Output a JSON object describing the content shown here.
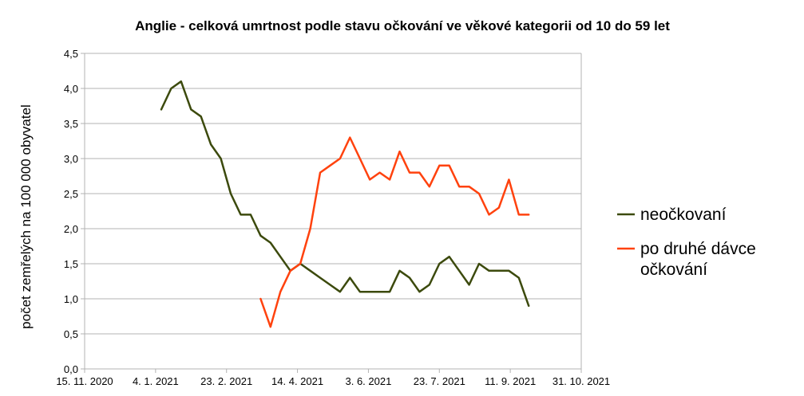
{
  "chart_data": {
    "type": "line",
    "title": "Anglie - celková umrtnost podle stavu očkování ve věkové kategorii od 10 do 59 let",
    "ylabel": "počet zemřelých na 100 000 obyvatel",
    "xlabel": "",
    "ylim": [
      0,
      4.5
    ],
    "yticks": [
      "0,0",
      "0,5",
      "1,0",
      "1,5",
      "2,0",
      "2,5",
      "3,0",
      "3,5",
      "4,0",
      "4,5"
    ],
    "ytick_values": [
      0,
      0.5,
      1.0,
      1.5,
      2.0,
      2.5,
      3.0,
      3.5,
      4.0,
      4.5
    ],
    "xlim": [
      "2020-11-15",
      "2021-10-31"
    ],
    "xticks": [
      "15. 11. 2020",
      "4. 1. 2021",
      "23. 2. 2021",
      "14. 4. 2021",
      "3. 6. 2021",
      "23. 7. 2021",
      "11. 9. 2021",
      "31. 10. 2021"
    ],
    "xtick_dates": [
      "2020-11-15",
      "2021-01-04",
      "2021-02-23",
      "2021-04-14",
      "2021-06-03",
      "2021-07-23",
      "2021-09-11",
      "2021-10-31"
    ],
    "grid": "horizontal",
    "legend": "right",
    "series": [
      {
        "name": "neočkovaní",
        "color": "#3c4a0d",
        "x": [
          "2021-01-08",
          "2021-01-15",
          "2021-01-22",
          "2021-01-29",
          "2021-02-05",
          "2021-02-12",
          "2021-02-19",
          "2021-02-26",
          "2021-03-05",
          "2021-03-12",
          "2021-03-19",
          "2021-03-26",
          "2021-04-02",
          "2021-04-09",
          "2021-04-16",
          "2021-04-23",
          "2021-04-30",
          "2021-05-07",
          "2021-05-14",
          "2021-05-21",
          "2021-05-28",
          "2021-06-04",
          "2021-06-11",
          "2021-06-18",
          "2021-06-25",
          "2021-07-02",
          "2021-07-09",
          "2021-07-16",
          "2021-07-23",
          "2021-07-30",
          "2021-08-06",
          "2021-08-13",
          "2021-08-20",
          "2021-08-27",
          "2021-09-03",
          "2021-09-10",
          "2021-09-17",
          "2021-09-24"
        ],
        "values": [
          3.7,
          4.0,
          4.1,
          3.7,
          3.6,
          3.2,
          3.0,
          2.5,
          2.2,
          2.2,
          1.9,
          1.8,
          1.6,
          1.4,
          1.5,
          1.4,
          1.3,
          1.2,
          1.1,
          1.3,
          1.1,
          1.1,
          1.1,
          1.1,
          1.4,
          1.3,
          1.1,
          1.2,
          1.5,
          1.6,
          1.4,
          1.2,
          1.5,
          1.4,
          1.4,
          1.4,
          1.3,
          0.9
        ]
      },
      {
        "name": "po druhé dávce očkování",
        "color": "#ff420e",
        "x": [
          "2021-03-19",
          "2021-03-26",
          "2021-04-02",
          "2021-04-09",
          "2021-04-16",
          "2021-04-23",
          "2021-04-30",
          "2021-05-07",
          "2021-05-14",
          "2021-05-21",
          "2021-05-28",
          "2021-06-04",
          "2021-06-11",
          "2021-06-18",
          "2021-06-25",
          "2021-07-02",
          "2021-07-09",
          "2021-07-16",
          "2021-07-23",
          "2021-07-30",
          "2021-08-06",
          "2021-08-13",
          "2021-08-20",
          "2021-08-27",
          "2021-09-03",
          "2021-09-10",
          "2021-09-17",
          "2021-09-24"
        ],
        "values": [
          1.0,
          0.6,
          1.1,
          1.4,
          1.5,
          2.0,
          2.8,
          2.9,
          3.0,
          3.3,
          3.0,
          2.7,
          2.8,
          2.7,
          3.1,
          2.8,
          2.8,
          2.6,
          2.9,
          2.9,
          2.6,
          2.6,
          2.5,
          2.2,
          2.3,
          2.7,
          2.2,
          2.2
        ]
      }
    ],
    "legend_entries": [
      {
        "lines": [
          "neočkovaní"
        ],
        "color": "#3c4a0d"
      },
      {
        "lines": [
          "po druhé dávce",
          "očkování"
        ],
        "color": "#ff420e"
      }
    ]
  }
}
